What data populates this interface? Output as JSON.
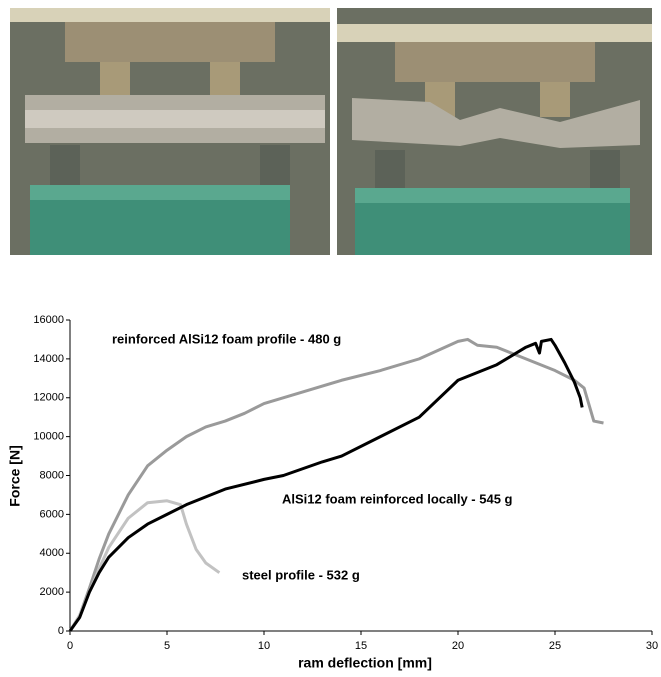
{
  "chart_data": {
    "type": "line",
    "xlabel": "ram deflection [mm]",
    "ylabel": "Force [N]",
    "xlim": [
      0,
      30
    ],
    "xticks": [
      0,
      5,
      10,
      15,
      20,
      25,
      30
    ],
    "ylim": [
      0,
      16000
    ],
    "yticks": [
      0,
      2000,
      4000,
      6000,
      8000,
      10000,
      12000,
      14000,
      16000
    ],
    "annotations": [
      "reinforced AlSi12 foam profile - 480 g",
      "AlSi12 foam reinforced locally - 545 g",
      "steel profile - 532 g"
    ],
    "series": [
      {
        "color": "#9a9a9a",
        "x": [
          0,
          0.5,
          1,
          1.5,
          2,
          3,
          4,
          5,
          6,
          7,
          8,
          9,
          10,
          12,
          14,
          16,
          18,
          20,
          20.5,
          21,
          22,
          23,
          24,
          25,
          26,
          26.5,
          27,
          27.5
        ],
        "values": [
          0,
          800,
          2200,
          3700,
          5000,
          7000,
          8500,
          9300,
          10000,
          10500,
          10800,
          11200,
          11700,
          12300,
          12900,
          13400,
          14000,
          14900,
          15000,
          14700,
          14600,
          14200,
          13800,
          13400,
          12900,
          12500,
          10800,
          10700
        ]
      },
      {
        "color": "#c2c2c2",
        "x": [
          0,
          0.5,
          1,
          1.5,
          2,
          3,
          4,
          5,
          5.7,
          6,
          6.5,
          7,
          7.7
        ],
        "values": [
          0,
          800,
          2000,
          3200,
          4300,
          5800,
          6600,
          6700,
          6500,
          5500,
          4200,
          3500,
          3000
        ]
      },
      {
        "color": "#000000",
        "x": [
          0,
          0.5,
          1,
          1.5,
          2,
          3,
          4,
          5,
          6,
          8,
          10,
          11,
          13,
          14,
          16,
          18,
          20,
          22,
          23.5,
          24,
          24.2,
          24.3,
          24.8,
          25,
          25.5,
          26,
          26.3,
          26.4
        ],
        "values": [
          0,
          700,
          2000,
          3000,
          3800,
          4800,
          5500,
          6000,
          6500,
          7300,
          7800,
          8000,
          8700,
          9000,
          10000,
          11000,
          12900,
          13700,
          14600,
          14800,
          14300,
          14900,
          15000,
          14700,
          13800,
          12800,
          12000,
          11500
        ]
      }
    ]
  }
}
